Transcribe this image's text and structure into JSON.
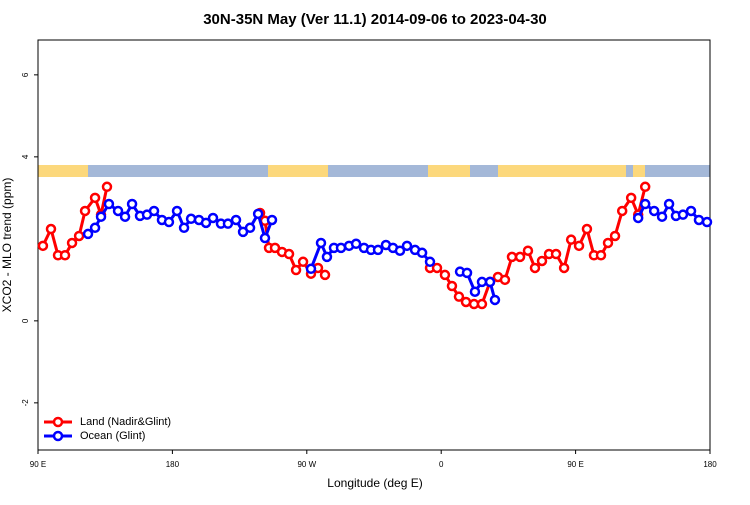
{
  "chart_data": {
    "type": "line",
    "title": "30N-35N May (Ver 11.1)   2014-09-06 to 2023-04-30",
    "x_label": "Longitude (deg E)",
    "y_label": "XCO2 - MLO trend (ppm)",
    "xlim": [
      90,
      540
    ],
    "xticks": [
      {
        "value": 90,
        "label": "90 E"
      },
      {
        "value": 180,
        "label": "180"
      },
      {
        "value": 270,
        "label": "90 W"
      },
      {
        "value": 360,
        "label": "0"
      },
      {
        "value": 450,
        "label": "90 E"
      },
      {
        "value": 540,
        "label": "180"
      }
    ],
    "ylim": [
      -3.15,
      6.85
    ],
    "yticks": [
      -2,
      0,
      4,
      6
    ],
    "legend": "bottom-left",
    "series": [
      {
        "name": "Land (Nadir&Glint)",
        "color": "#ff0000",
        "x": [
          93.3,
          98.7,
          103.4,
          108.1,
          112.8,
          117.5,
          121.5,
          128.2,
          132.2,
          136.2,
          null,
          238.7,
          242.0,
          244.7,
          248.7,
          253.4,
          258.1,
          262.8,
          267.5,
          272.8,
          277.5,
          282.2,
          null,
          352.5,
          357.2,
          362.5,
          367.2,
          371.9,
          376.6,
          382.0,
          387.3,
          392.7,
          398.0,
          402.7,
          407.4,
          412.8,
          418.1,
          422.8,
          427.5,
          432.2,
          436.9,
          442.3,
          447.0,
          452.3,
          457.6,
          462.3,
          467.0,
          471.7,
          476.4,
          481.2,
          487.2,
          491.9,
          496.6
        ],
        "values": [
          1.83,
          2.24,
          1.6,
          1.6,
          1.9,
          2.07,
          2.68,
          3.0,
          2.59,
          3.27,
          null,
          2.63,
          2.44,
          1.78,
          1.78,
          1.68,
          1.63,
          1.24,
          1.44,
          1.15,
          1.29,
          1.12,
          null,
          1.29,
          1.29,
          1.12,
          0.85,
          0.59,
          0.46,
          0.41,
          0.41,
          0.95,
          1.07,
          1.0,
          1.56,
          1.56,
          1.71,
          1.29,
          1.46,
          1.63,
          1.63,
          1.29,
          1.98,
          1.83,
          2.24,
          1.6,
          1.6,
          1.9,
          2.07,
          2.68,
          3.0,
          2.59,
          3.27
        ]
      },
      {
        "name": "Ocean (Glint)",
        "color": "#0000ff",
        "x": [
          123.5,
          128.2,
          132.2,
          137.5,
          143.6,
          148.3,
          153.0,
          158.3,
          163.0,
          167.7,
          173.0,
          177.7,
          183.1,
          187.8,
          192.5,
          197.8,
          202.5,
          207.2,
          212.5,
          217.2,
          222.6,
          227.3,
          232.0,
          237.4,
          242.0,
          246.7,
          null,
          272.8,
          279.5,
          283.5,
          288.2,
          292.9,
          298.3,
          303.0,
          308.3,
          313.0,
          317.7,
          323.0,
          327.7,
          332.4,
          337.1,
          342.5,
          347.2,
          352.5,
          null,
          372.6,
          377.3,
          382.6,
          387.3,
          392.7,
          396.0,
          null,
          491.9,
          496.6,
          502.6,
          507.9,
          512.6,
          517.2,
          521.9,
          527.3,
          532.6,
          538.0
        ],
        "values": [
          2.12,
          2.27,
          2.54,
          2.85,
          2.68,
          2.54,
          2.85,
          2.56,
          2.59,
          2.68,
          2.46,
          2.41,
          2.68,
          2.27,
          2.49,
          2.46,
          2.39,
          2.51,
          2.37,
          2.37,
          2.46,
          2.17,
          2.27,
          2.61,
          2.02,
          2.46,
          null,
          1.27,
          1.9,
          1.56,
          1.78,
          1.78,
          1.83,
          1.88,
          1.78,
          1.73,
          1.73,
          1.85,
          1.78,
          1.71,
          1.83,
          1.73,
          1.66,
          1.44,
          null,
          1.2,
          1.17,
          0.71,
          0.95,
          0.95,
          0.51,
          null,
          2.51,
          2.85,
          2.68,
          2.54,
          2.85,
          2.56,
          2.59,
          2.68,
          2.46,
          2.41
        ]
      }
    ]
  }
}
